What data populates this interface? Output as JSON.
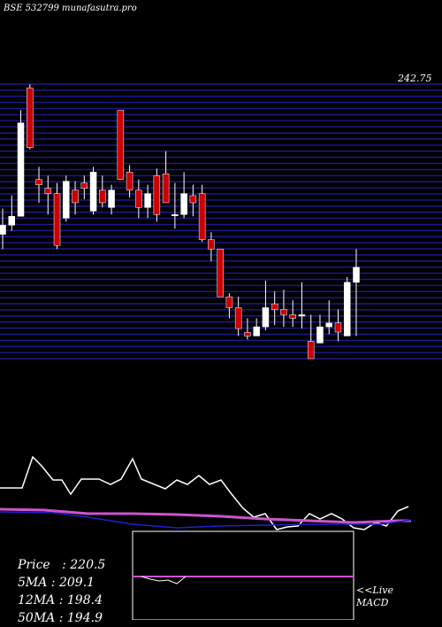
{
  "header": {
    "symbol": "BSE 532799 munafasutra.pro"
  },
  "price_label_top": "242.75",
  "stats": [
    {
      "label": "Price",
      "value": "220.5"
    },
    {
      "label": "5MA",
      "value": "209.1"
    },
    {
      "label": "12MA",
      "value": "198.4"
    },
    {
      "label": "50MA",
      "value": "194.9"
    }
  ],
  "live_label": "<<Live",
  "macd_label": "MACD",
  "colors": {
    "background": "#000000",
    "grid": "#1a1a8c",
    "bull": "#ffffff",
    "bear": "#cc0000",
    "ma_line": "#ffffff",
    "ma50": "#cc55cc",
    "ma_blue": "#2020cc"
  },
  "chart_data": {
    "type": "candlestick",
    "candles": [
      {
        "o": 191.8,
        "h": 200.5,
        "l": 186.8,
        "c": 194.9
      },
      {
        "o": 194.9,
        "h": 205.0,
        "l": 193.0,
        "c": 197.9
      },
      {
        "o": 197.9,
        "h": 233.9,
        "l": 197.9,
        "c": 229.6
      },
      {
        "o": 241.5,
        "h": 242.7,
        "l": 220.6,
        "c": 221.2
      },
      {
        "o": 210.4,
        "h": 214.7,
        "l": 202.5,
        "c": 208.6
      },
      {
        "o": 207.4,
        "h": 211.7,
        "l": 198.5,
        "c": 205.6
      },
      {
        "o": 205.6,
        "h": 209.2,
        "l": 186.8,
        "c": 188.0
      },
      {
        "o": 197.3,
        "h": 211.7,
        "l": 196.1,
        "c": 209.8
      },
      {
        "o": 206.8,
        "h": 209.8,
        "l": 198.5,
        "c": 202.5
      },
      {
        "o": 209.2,
        "h": 211.7,
        "l": 203.7,
        "c": 207.4
      },
      {
        "o": 199.7,
        "h": 214.7,
        "l": 198.5,
        "c": 212.9
      },
      {
        "o": 206.8,
        "h": 211.7,
        "l": 200.9,
        "c": 202.5
      },
      {
        "o": 200.9,
        "h": 208.6,
        "l": 198.5,
        "c": 206.8
      },
      {
        "o": 233.9,
        "h": 233.9,
        "l": 210.4,
        "c": 210.4
      },
      {
        "o": 212.9,
        "h": 215.3,
        "l": 204.3,
        "c": 206.8
      },
      {
        "o": 206.8,
        "h": 210.4,
        "l": 197.3,
        "c": 200.9
      },
      {
        "o": 200.9,
        "h": 208.6,
        "l": 197.3,
        "c": 205.6
      },
      {
        "o": 211.7,
        "h": 214.1,
        "l": 196.1,
        "c": 198.5
      },
      {
        "o": 212.3,
        "h": 220.0,
        "l": 202.5,
        "c": 202.5
      },
      {
        "o": 198.5,
        "h": 209.2,
        "l": 193.7,
        "c": 198.5
      },
      {
        "o": 198.5,
        "h": 212.9,
        "l": 197.3,
        "c": 205.6
      },
      {
        "o": 204.9,
        "h": 208.6,
        "l": 197.9,
        "c": 202.5
      },
      {
        "o": 205.6,
        "h": 208.6,
        "l": 189.2,
        "c": 190.0
      },
      {
        "o": 190.0,
        "h": 192.5,
        "l": 182.6,
        "c": 186.8
      },
      {
        "o": 186.8,
        "h": 186.8,
        "l": 170.6,
        "c": 170.6
      },
      {
        "o": 170.6,
        "h": 171.8,
        "l": 163.3,
        "c": 166.9
      },
      {
        "o": 166.9,
        "h": 170.6,
        "l": 157.3,
        "c": 159.8
      },
      {
        "o": 158.5,
        "h": 163.3,
        "l": 156.1,
        "c": 157.3
      },
      {
        "o": 157.3,
        "h": 163.3,
        "l": 157.3,
        "c": 160.4
      },
      {
        "o": 160.4,
        "h": 176.1,
        "l": 159.2,
        "c": 166.9
      },
      {
        "o": 168.2,
        "h": 172.4,
        "l": 161.0,
        "c": 166.3
      },
      {
        "o": 166.3,
        "h": 173.0,
        "l": 160.4,
        "c": 164.5
      },
      {
        "o": 164.5,
        "h": 169.4,
        "l": 160.4,
        "c": 163.3
      },
      {
        "o": 164.5,
        "h": 175.5,
        "l": 159.8,
        "c": 164.5
      },
      {
        "o": 155.5,
        "h": 164.5,
        "l": 149.6,
        "c": 149.6
      },
      {
        "o": 154.9,
        "h": 164.5,
        "l": 154.9,
        "c": 160.4
      },
      {
        "o": 160.4,
        "h": 169.4,
        "l": 157.9,
        "c": 161.7
      },
      {
        "o": 161.7,
        "h": 166.3,
        "l": 155.5,
        "c": 158.6
      },
      {
        "o": 157.3,
        "h": 177.3,
        "l": 157.3,
        "c": 175.5
      },
      {
        "o": 175.5,
        "h": 186.8,
        "l": 157.3,
        "c": 180.6
      }
    ],
    "price_max": 242.75,
    "price_min": 149.6
  }
}
